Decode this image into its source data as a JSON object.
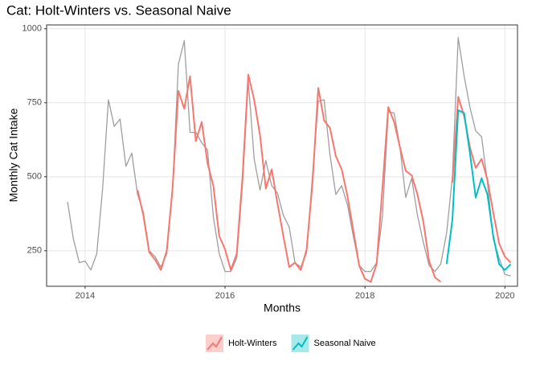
{
  "chart_data": {
    "type": "line",
    "title": "Cat: Holt-Winters vs. Seasonal Naive",
    "x_label": "Months",
    "y_label": "Monthly Cat Intake",
    "x": [
      2013.75,
      2013.833,
      2013.917,
      2014,
      2014.083,
      2014.167,
      2014.25,
      2014.333,
      2014.417,
      2014.5,
      2014.583,
      2014.667,
      2014.75,
      2014.833,
      2014.917,
      2015,
      2015.083,
      2015.167,
      2015.25,
      2015.333,
      2015.417,
      2015.5,
      2015.583,
      2015.667,
      2015.75,
      2015.833,
      2015.917,
      2016,
      2016.083,
      2016.167,
      2016.25,
      2016.333,
      2016.417,
      2016.5,
      2016.583,
      2016.667,
      2016.75,
      2016.833,
      2016.917,
      2017,
      2017.083,
      2017.167,
      2017.25,
      2017.333,
      2017.417,
      2017.5,
      2017.583,
      2017.667,
      2017.75,
      2017.833,
      2017.917,
      2018,
      2018.083,
      2018.167,
      2018.25,
      2018.333,
      2018.417,
      2018.5,
      2018.583,
      2018.667,
      2018.75,
      2018.833,
      2018.917,
      2019,
      2019.083,
      2019.167,
      2019.25,
      2019.333,
      2019.417,
      2019.5,
      2019.583,
      2019.667,
      2019.75,
      2019.833,
      2019.917,
      2020,
      2020.083
    ],
    "series": [
      {
        "color": "#9e9e9e",
        "values": [
          415,
          290,
          210,
          215,
          185,
          240,
          460,
          760,
          670,
          695,
          535,
          580,
          440,
          380,
          250,
          230,
          195,
          240,
          450,
          880,
          960,
          650,
          650,
          615,
          590,
          365,
          240,
          180,
          180,
          225,
          475,
          825,
          560,
          455,
          555,
          470,
          445,
          370,
          330,
          210,
          195,
          245,
          505,
          755,
          760,
          575,
          440,
          470,
          405,
          300,
          200,
          180,
          180,
          210,
          365,
          720,
          715,
          600,
          430,
          495,
          370,
          280,
          200,
          180,
          205,
          310,
          500,
          970,
          840,
          735,
          655,
          635,
          480,
          290,
          225,
          170,
          165
        ]
      },
      {
        "name": "Holt-Winters",
        "color": "#F8766D",
        "values": [
          null,
          null,
          null,
          null,
          null,
          null,
          null,
          null,
          null,
          null,
          null,
          null,
          455,
          370,
          245,
          220,
          185,
          250,
          460,
          790,
          730,
          840,
          620,
          685,
          545,
          470,
          300,
          255,
          185,
          240,
          500,
          845,
          760,
          640,
          460,
          525,
          410,
          300,
          195,
          210,
          185,
          255,
          480,
          800,
          690,
          665,
          570,
          525,
          435,
          320,
          200,
          155,
          145,
          205,
          460,
          735,
          685,
          600,
          520,
          505,
          440,
          350,
          215,
          160,
          145,
          null,
          480,
          770,
          705,
          600,
          530,
          560,
          490,
          380,
          275,
          230,
          210
        ]
      },
      {
        "name": "Seasonal Naive",
        "color": "#00BFC4",
        "values": [
          null,
          null,
          null,
          null,
          null,
          null,
          null,
          null,
          null,
          null,
          null,
          null,
          null,
          null,
          null,
          null,
          null,
          null,
          null,
          null,
          null,
          null,
          null,
          null,
          null,
          null,
          null,
          null,
          null,
          null,
          null,
          null,
          null,
          null,
          null,
          null,
          null,
          null,
          null,
          null,
          null,
          null,
          null,
          null,
          null,
          null,
          null,
          null,
          null,
          null,
          null,
          null,
          null,
          null,
          null,
          null,
          null,
          null,
          null,
          null,
          null,
          null,
          null,
          null,
          null,
          205,
          355,
          725,
          715,
          580,
          430,
          495,
          440,
          300,
          205,
          185,
          205
        ]
      }
    ],
    "xlim": [
      2013.45,
      2020.18
    ],
    "xticks": [
      2014,
      2016,
      2018,
      2020
    ],
    "ylim": [
      130,
      1013
    ],
    "yticks": [
      250,
      500,
      750,
      1000
    ],
    "grid": true,
    "legend": "bottom"
  }
}
